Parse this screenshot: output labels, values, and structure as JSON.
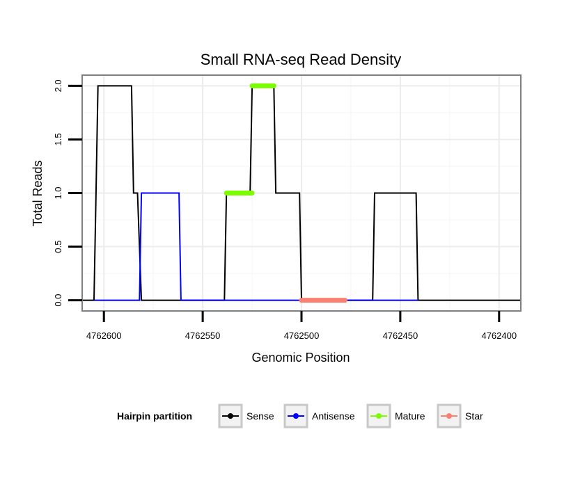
{
  "chart_data": {
    "type": "line",
    "title": "Small RNA-seq Read Density",
    "xlabel": "Genomic Position",
    "ylabel": "Total Reads",
    "x_reversed": true,
    "xlim": [
      4762611,
      4762389
    ],
    "ylim": [
      -0.1,
      2.1
    ],
    "x_ticks": [
      4762600,
      4762550,
      4762500,
      4762450,
      4762400
    ],
    "x_tick_labels": [
      "4762600",
      "4762550",
      "4762500",
      "4762450",
      "4762400"
    ],
    "y_ticks": [
      0,
      0.5,
      1,
      1.5,
      2
    ],
    "y_tick_labels": [
      "0.0",
      "0.5",
      "1.0",
      "1.5",
      "2.0"
    ],
    "grid": true,
    "legend": {
      "title": "Hairpin partition",
      "position": "bottom",
      "entries": [
        {
          "name": "Sense",
          "color": "#000000"
        },
        {
          "name": "Antisense",
          "color": "#0000ff"
        },
        {
          "name": "Mature",
          "color": "#7cfc00"
        },
        {
          "name": "Star",
          "color": "#fa8072"
        }
      ]
    },
    "series": [
      {
        "name": "Sense",
        "color": "#000000",
        "width": 2,
        "x": [
          4762611,
          4762605,
          4762604,
          4762603,
          4762586,
          4762585,
          4762583,
          4762581,
          4762539,
          4762538,
          4762526,
          4762525,
          4762514,
          4762513,
          4762501,
          4762500,
          4762464,
          4762463,
          4762442,
          4762441,
          4762389
        ],
        "y": [
          0,
          0,
          1,
          2,
          2,
          1,
          1,
          0,
          0,
          1,
          1,
          2,
          2,
          1,
          1,
          0,
          0,
          1,
          1,
          0,
          0
        ]
      },
      {
        "name": "Antisense",
        "color": "#0000ff",
        "width": 2,
        "x": [
          4762605,
          4762582,
          4762581,
          4762562,
          4762561,
          4762539,
          4762500,
          4762464,
          4762441
        ],
        "y": [
          0,
          0,
          1,
          1,
          0,
          0,
          0,
          0,
          0
        ]
      },
      {
        "name": "Mature",
        "color": "#7cfc00",
        "width": 7,
        "segments": [
          {
            "x": [
              4762538,
              4762525
            ],
            "y": [
              1,
              1
            ]
          },
          {
            "x": [
              4762525,
              4762514
            ],
            "y": [
              2,
              2
            ]
          }
        ]
      },
      {
        "name": "Star",
        "color": "#fa8072",
        "width": 7,
        "segments": [
          {
            "x": [
              4762500,
              4762478
            ],
            "y": [
              0,
              0
            ]
          }
        ]
      }
    ]
  }
}
